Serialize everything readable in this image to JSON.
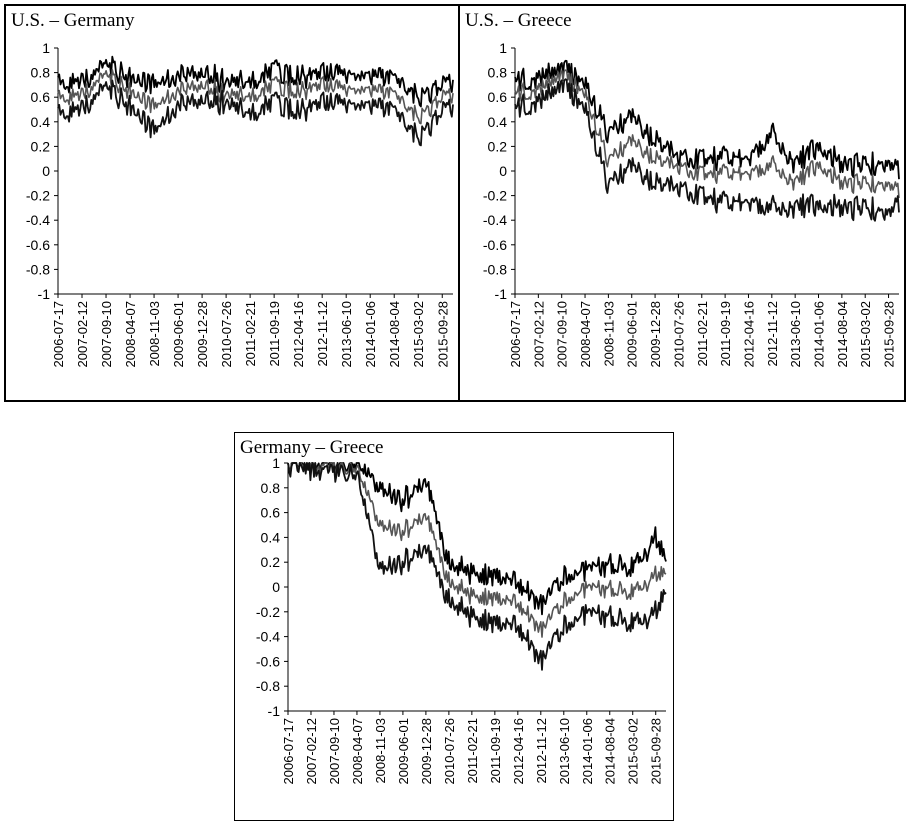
{
  "colors": {
    "upper_band": "#000000",
    "estimate": "#555555",
    "lower_band": "#111111"
  },
  "chart_data": [
    {
      "type": "line",
      "title": "U.S. – Germany",
      "ylim": [
        -1,
        1
      ],
      "yticks": [
        "1",
        "0.8",
        "0.6",
        "0.4",
        "0.2",
        "0",
        "-0.2",
        "-0.4",
        "-0.6",
        "-0.8",
        "-1"
      ],
      "xticks": [
        "2006-07-17",
        "2007-02-12",
        "2007-09-10",
        "2008-04-07",
        "2008-11-03",
        "2009-06-01",
        "2009-12-28",
        "2010-07-26",
        "2011-02-21",
        "2011-09-19",
        "2012-04-16",
        "2012-11-12",
        "2013-06-10",
        "2014-01-06",
        "2014-08-04",
        "2015-03-02",
        "2015-09-28"
      ],
      "grid": false,
      "series": [
        {
          "x": [
            "2006-07-17",
            "2007-02-12",
            "2007-09-10",
            "2008-04-07",
            "2008-11-03",
            "2009-06-01",
            "2009-12-28",
            "2010-07-26",
            "2011-02-21",
            "2011-09-19",
            "2012-04-16",
            "2012-11-12",
            "2013-06-10",
            "2014-01-06",
            "2014-08-04",
            "2015-03-02",
            "2015-09-28",
            "2015-12-31"
          ],
          "values": [
            0.72,
            0.74,
            0.86,
            0.76,
            0.7,
            0.76,
            0.8,
            0.72,
            0.72,
            0.82,
            0.76,
            0.82,
            0.78,
            0.8,
            0.76,
            0.58,
            0.7,
            0.7
          ]
        },
        {
          "x": [
            "2006-07-17",
            "2007-02-12",
            "2007-09-10",
            "2008-04-07",
            "2008-11-03",
            "2009-06-01",
            "2009-12-28",
            "2010-07-26",
            "2011-02-21",
            "2011-09-19",
            "2012-04-16",
            "2012-11-12",
            "2013-06-10",
            "2014-01-06",
            "2014-08-04",
            "2015-03-02",
            "2015-09-28",
            "2015-12-31"
          ],
          "values": [
            0.6,
            0.63,
            0.78,
            0.65,
            0.52,
            0.64,
            0.7,
            0.62,
            0.6,
            0.7,
            0.64,
            0.72,
            0.66,
            0.68,
            0.63,
            0.42,
            0.6,
            0.6
          ]
        },
        {
          "x": [
            "2006-07-17",
            "2007-02-12",
            "2007-09-10",
            "2008-04-07",
            "2008-11-03",
            "2009-06-01",
            "2009-12-28",
            "2010-07-26",
            "2011-02-21",
            "2011-09-19",
            "2012-04-16",
            "2012-11-12",
            "2013-06-10",
            "2014-01-06",
            "2014-08-04",
            "2015-03-02",
            "2015-09-28",
            "2015-12-31"
          ],
          "values": [
            0.47,
            0.52,
            0.68,
            0.53,
            0.32,
            0.52,
            0.58,
            0.55,
            0.46,
            0.56,
            0.48,
            0.58,
            0.54,
            0.56,
            0.5,
            0.25,
            0.49,
            0.5
          ]
        }
      ]
    },
    {
      "type": "line",
      "title": "U.S. – Greece",
      "ylim": [
        -1,
        1
      ],
      "yticks": [
        "1",
        "0.8",
        "0.6",
        "0.4",
        "0.2",
        "0",
        "-0.2",
        "-0.4",
        "-0.6",
        "-0.8",
        "-1"
      ],
      "xticks": [
        "2006-07-17",
        "2007-02-12",
        "2007-09-10",
        "2008-04-07",
        "2008-11-03",
        "2009-06-01",
        "2009-12-28",
        "2010-07-26",
        "2011-02-21",
        "2011-09-19",
        "2012-04-16",
        "2012-11-12",
        "2013-06-10",
        "2014-01-06",
        "2014-08-04",
        "2015-03-02",
        "2015-09-28"
      ],
      "grid": false,
      "series": [
        {
          "x": [
            "2006-07-17",
            "2007-02-12",
            "2007-09-10",
            "2008-04-07",
            "2008-11-03",
            "2009-06-01",
            "2009-12-28",
            "2010-07-26",
            "2011-02-21",
            "2011-09-19",
            "2012-04-16",
            "2012-11-12",
            "2013-06-10",
            "2014-01-06",
            "2014-08-04",
            "2015-03-02",
            "2015-09-28",
            "2015-12-31"
          ],
          "values": [
            0.72,
            0.74,
            0.86,
            0.7,
            0.3,
            0.45,
            0.25,
            0.1,
            0.1,
            0.12,
            0.1,
            0.3,
            0.05,
            0.2,
            0.05,
            0.05,
            0.05,
            0.02
          ]
        },
        {
          "x": [
            "2006-07-17",
            "2007-02-12",
            "2007-09-10",
            "2008-04-07",
            "2008-11-03",
            "2009-06-01",
            "2009-12-28",
            "2010-07-26",
            "2011-02-21",
            "2011-09-19",
            "2012-04-16",
            "2012-11-12",
            "2013-06-10",
            "2014-01-06",
            "2014-08-04",
            "2015-03-02",
            "2015-09-28",
            "2015-12-31"
          ],
          "values": [
            0.62,
            0.65,
            0.8,
            0.62,
            0.08,
            0.25,
            0.1,
            0.02,
            -0.02,
            -0.01,
            -0.02,
            0.05,
            -0.1,
            0.05,
            -0.1,
            -0.1,
            -0.12,
            -0.15
          ]
        },
        {
          "x": [
            "2006-07-17",
            "2007-02-12",
            "2007-09-10",
            "2008-04-07",
            "2008-11-03",
            "2009-06-01",
            "2009-12-28",
            "2010-07-26",
            "2011-02-21",
            "2011-09-19",
            "2012-04-16",
            "2012-11-12",
            "2013-06-10",
            "2014-01-06",
            "2014-08-04",
            "2015-03-02",
            "2015-09-28",
            "2015-12-31"
          ],
          "values": [
            0.5,
            0.55,
            0.72,
            0.5,
            -0.12,
            0.05,
            -0.1,
            -0.15,
            -0.2,
            -0.25,
            -0.25,
            -0.3,
            -0.3,
            -0.28,
            -0.3,
            -0.3,
            -0.35,
            -0.25
          ]
        }
      ]
    },
    {
      "type": "line",
      "title": "Germany – Greece",
      "ylim": [
        -1,
        1
      ],
      "yticks": [
        "1",
        "0.8",
        "0.6",
        "0.4",
        "0.2",
        "0",
        "-0.2",
        "-0.4",
        "-0.6",
        "-0.8",
        "-1"
      ],
      "xticks": [
        "2006-07-17",
        "2007-02-12",
        "2007-09-10",
        "2008-04-07",
        "2008-11-03",
        "2009-06-01",
        "2009-12-28",
        "2010-07-26",
        "2011-02-21",
        "2011-09-19",
        "2012-04-16",
        "2012-11-12",
        "2013-06-10",
        "2014-01-06",
        "2014-08-04",
        "2015-03-02",
        "2015-09-28"
      ],
      "grid": false,
      "series": [
        {
          "x": [
            "2006-07-17",
            "2007-02-12",
            "2007-09-10",
            "2008-04-07",
            "2008-11-03",
            "2009-06-01",
            "2009-12-28",
            "2010-07-26",
            "2011-02-21",
            "2011-09-19",
            "2012-04-16",
            "2012-11-12",
            "2013-06-10",
            "2014-01-06",
            "2014-08-04",
            "2015-03-02",
            "2015-09-28",
            "2015-12-31"
          ],
          "values": [
            1.0,
            0.99,
            0.99,
            0.99,
            0.8,
            0.7,
            0.82,
            0.2,
            0.1,
            0.1,
            0.05,
            -0.15,
            0.1,
            0.15,
            0.2,
            0.15,
            0.4,
            0.2
          ]
        },
        {
          "x": [
            "2006-07-17",
            "2007-02-12",
            "2007-09-10",
            "2008-04-07",
            "2008-11-03",
            "2009-06-01",
            "2009-12-28",
            "2010-07-26",
            "2011-02-21",
            "2011-09-19",
            "2012-04-16",
            "2012-11-12",
            "2013-06-10",
            "2014-01-06",
            "2014-08-04",
            "2015-03-02",
            "2015-09-28",
            "2015-12-31"
          ],
          "values": [
            0.99,
            0.97,
            0.96,
            0.95,
            0.5,
            0.45,
            0.55,
            0.05,
            -0.08,
            -0.08,
            -0.12,
            -0.35,
            -0.1,
            0.0,
            0.0,
            -0.05,
            0.1,
            0.1
          ]
        },
        {
          "x": [
            "2006-07-17",
            "2007-02-12",
            "2007-09-10",
            "2008-04-07",
            "2008-11-03",
            "2009-06-01",
            "2009-12-28",
            "2010-07-26",
            "2011-02-21",
            "2011-09-19",
            "2012-04-16",
            "2012-11-12",
            "2013-06-10",
            "2014-01-06",
            "2014-08-04",
            "2015-03-02",
            "2015-09-28",
            "2015-12-31"
          ],
          "values": [
            0.98,
            0.94,
            0.92,
            0.9,
            0.15,
            0.2,
            0.28,
            -0.1,
            -0.25,
            -0.28,
            -0.3,
            -0.6,
            -0.3,
            -0.2,
            -0.22,
            -0.3,
            -0.2,
            -0.05
          ]
        }
      ]
    }
  ]
}
